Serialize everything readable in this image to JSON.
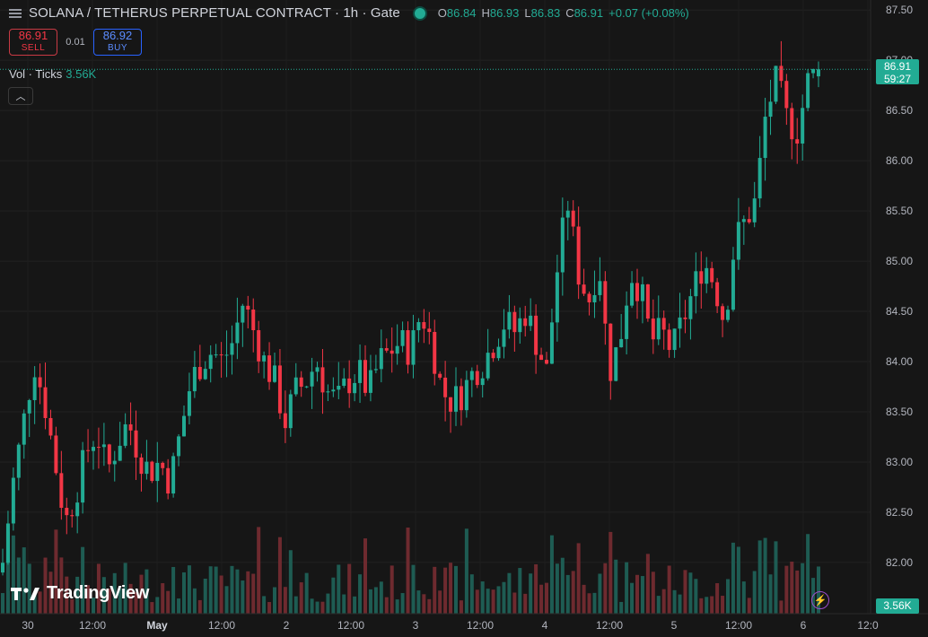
{
  "header": {
    "title": "SOLANA / TETHERUS PERPETUAL CONTRACT · 1h · Gate",
    "ohlc": {
      "o_label": "O",
      "o": "86.84",
      "h_label": "H",
      "h": "86.93",
      "l_label": "L",
      "l": "86.83",
      "c_label": "C",
      "c": "86.91",
      "change": "+0.07 (+0.08%)"
    }
  },
  "trade": {
    "sell_price": "86.91",
    "sell_label": "SELL",
    "spread": "0.01",
    "buy_price": "86.92",
    "buy_label": "BUY"
  },
  "volume_legend": {
    "label": "Vol · Ticks",
    "value": "3.56K"
  },
  "last_price": {
    "price": "86.91",
    "countdown": "59:27"
  },
  "volume_badge": "3.56K",
  "watermark": "TradingView",
  "colors": {
    "up": "#22ab94",
    "down": "#f23645",
    "background": "#161616",
    "grid": "#222222",
    "text": "#b2b5be"
  },
  "icons": {
    "menu": "menu-icon",
    "collapse": "chevron-up-icon",
    "logo": "tradingview-logo-icon",
    "bolt": "lightning-icon"
  },
  "chart_data": {
    "type": "candlestick",
    "ylim": [
      81.6,
      87.6
    ],
    "y_ticks": [
      "87.50",
      "87.00",
      "86.50",
      "86.00",
      "85.50",
      "85.00",
      "84.50",
      "84.00",
      "83.50",
      "83.00",
      "82.50",
      "82.00"
    ],
    "x_ticks": [
      "30",
      "12:00",
      "May",
      "12:00",
      "2",
      "12:00",
      "3",
      "12:00",
      "4",
      "12:00",
      "5",
      "12:00",
      "6",
      "12:0"
    ],
    "candles_close": [
      82.0,
      82.8,
      83.4,
      84.0,
      83.6,
      83.0,
      82.4,
      82.7,
      83.1,
      83.3,
      82.9,
      83.2,
      83.4,
      83.1,
      82.9,
      83.0,
      82.8,
      83.3,
      83.8,
      84.0,
      84.1,
      84.0,
      84.2,
      84.6,
      84.3,
      84.0,
      83.8,
      83.4,
      83.7,
      83.8,
      84.0,
      83.7,
      83.6,
      83.8,
      83.9,
      83.7,
      84.0,
      84.1,
      84.2,
      84.1,
      84.5,
      84.2,
      83.7,
      83.6,
      83.7,
      83.9,
      84.0,
      84.2,
      84.4,
      84.3,
      84.5,
      84.2,
      83.9,
      84.9,
      85.6,
      84.9,
      84.6,
      85.0,
      83.9,
      84.2,
      84.9,
      84.7,
      84.2,
      84.3,
      84.1,
      84.4,
      84.7,
      85.0,
      84.8,
      84.4,
      85.2,
      85.4,
      85.6,
      86.5,
      86.8,
      86.4,
      86.3,
      86.8,
      86.91
    ]
  }
}
